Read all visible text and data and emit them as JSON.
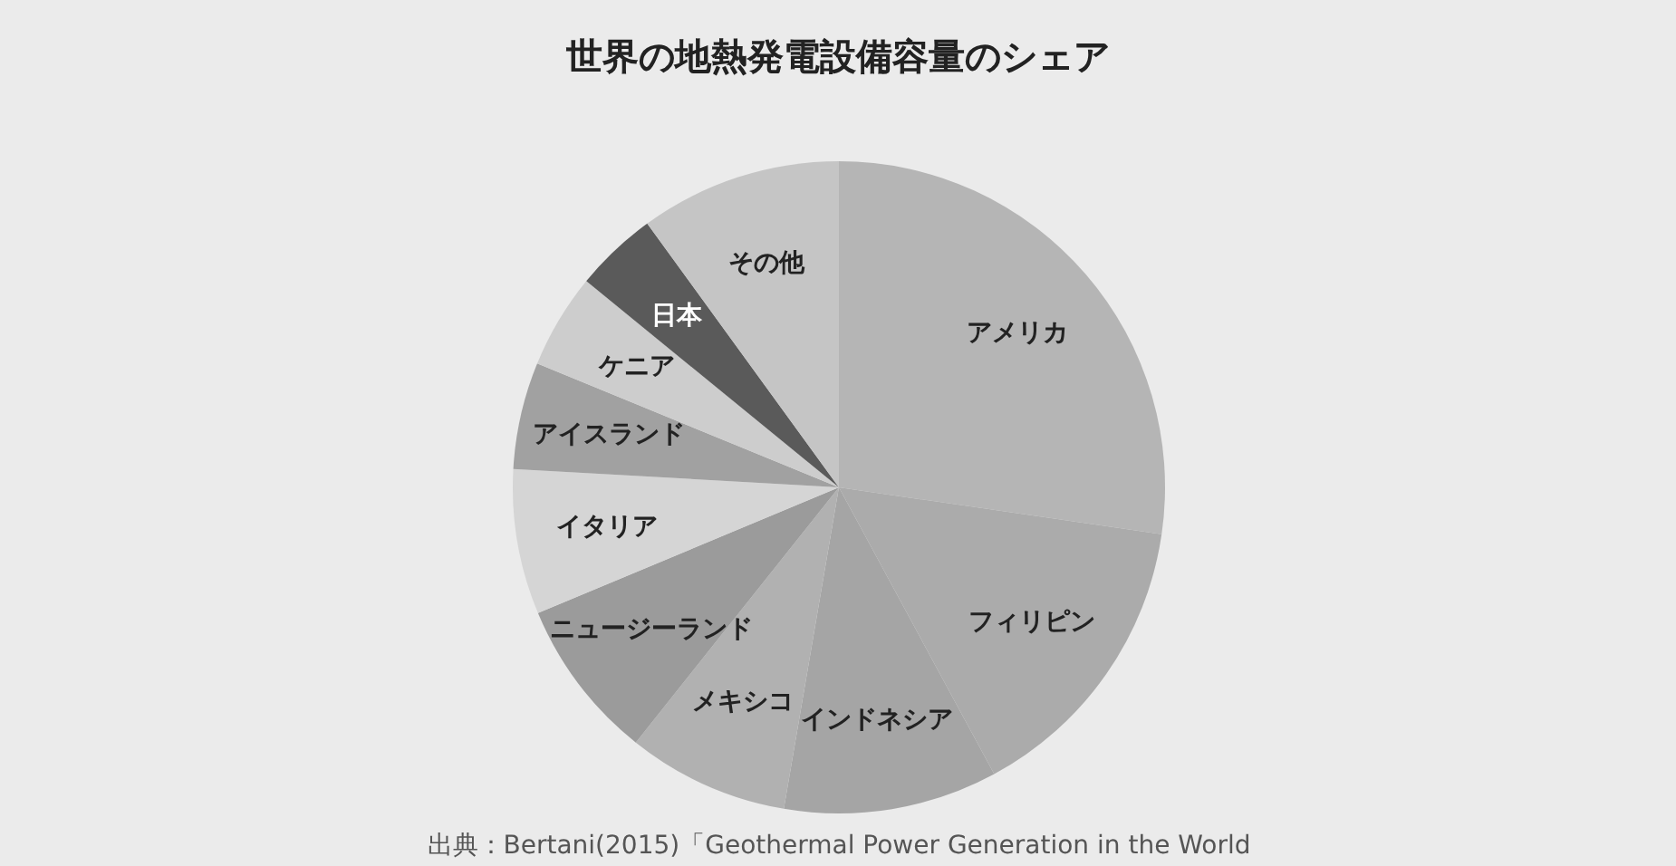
{
  "chart_data": {
    "type": "pie",
    "title": "世界の地熱発電設備容量のシェア",
    "categories": [
      "アメリカ",
      "フィリピン",
      "インドネシア",
      "メキシコ",
      "ニュージーランド",
      "イタリア",
      "アイスランド",
      "ケニア",
      "日本",
      "その他"
    ],
    "values": [
      27.3,
      14.8,
      10.6,
      8.0,
      8.0,
      7.2,
      5.3,
      4.7,
      4.1,
      10.0
    ],
    "colors": [
      "#b5b5b5",
      "#ababab",
      "#a5a5a5",
      "#b1b1b1",
      "#9b9b9b",
      "#d5d5d5",
      "#a1a1a1",
      "#cdcdcd",
      "#5a5a5a",
      "#c5c5c5"
    ],
    "annotations": [
      "出典：Bertani(2015)「Geothermal Power Generation in the World"
    ]
  }
}
